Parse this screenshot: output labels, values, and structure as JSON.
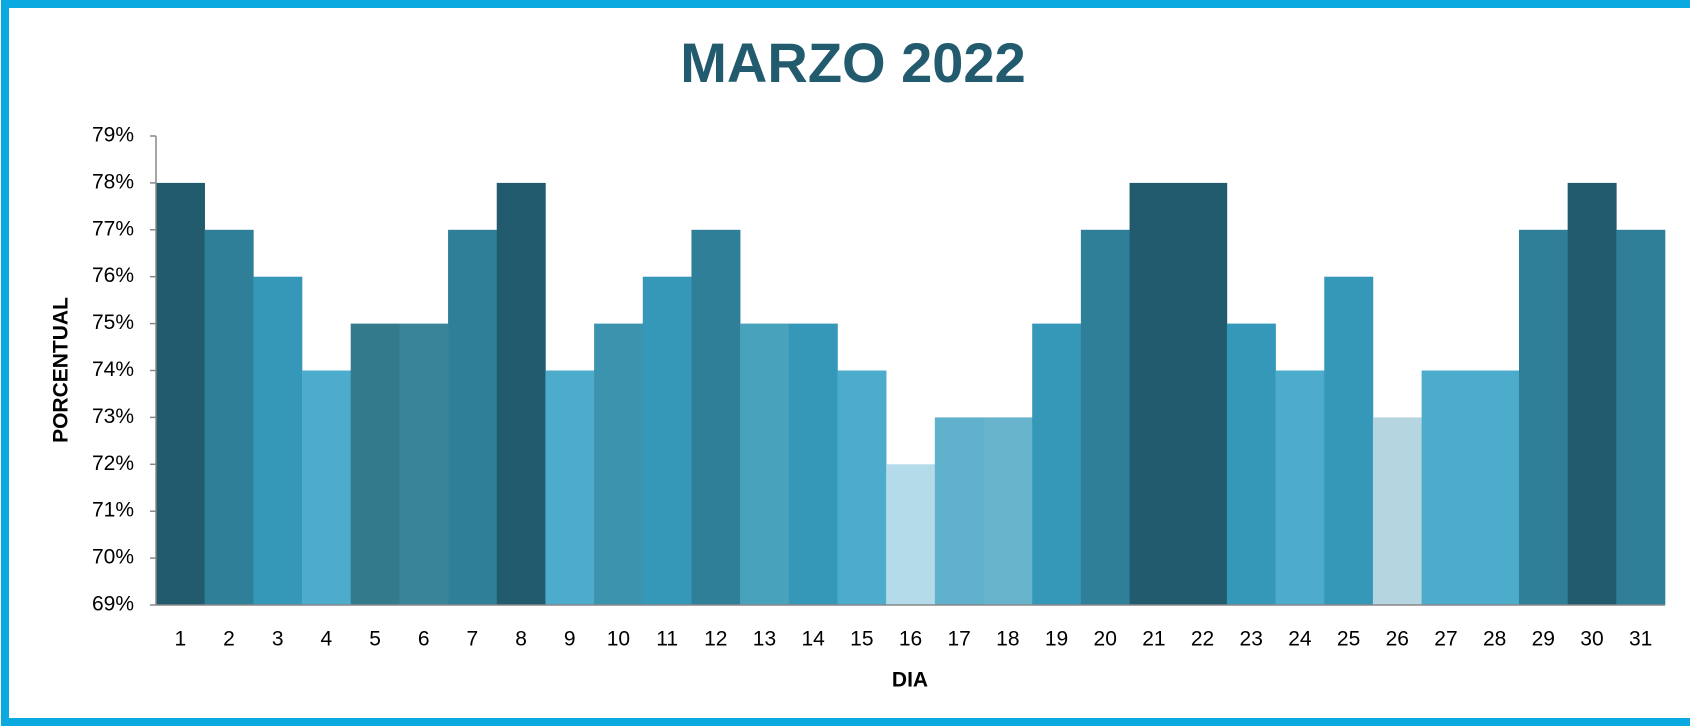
{
  "chart_data": {
    "type": "bar",
    "title": "MARZO 2022",
    "x_label": "DIA",
    "y_label": "PORCENTUAL",
    "categories": [
      "1",
      "2",
      "3",
      "4",
      "5",
      "6",
      "7",
      "8",
      "9",
      "10",
      "11",
      "12",
      "13",
      "14",
      "15",
      "16",
      "17",
      "18",
      "19",
      "20",
      "21",
      "22",
      "23",
      "24",
      "25",
      "26",
      "27",
      "28",
      "29",
      "30",
      "31"
    ],
    "values": [
      78,
      77,
      76,
      74,
      75,
      75,
      77,
      78,
      74,
      75,
      76,
      77,
      75,
      75,
      74,
      72,
      73,
      73,
      75,
      77,
      78,
      78,
      75,
      74,
      76,
      73,
      74,
      74,
      77,
      78,
      77
    ],
    "colors": [
      "#225b6e",
      "#2e7f97",
      "#3698b8",
      "#4dabcc",
      "#327a8c",
      "#3a8499",
      "#2e7f97",
      "#225b6e",
      "#4dabcc",
      "#3c93ad",
      "#3698b8",
      "#2e7f97",
      "#48a2bb",
      "#3698b8",
      "#4dabcc",
      "#b3dbea",
      "#5fb1cc",
      "#68b4cc",
      "#3698b8",
      "#2e7f97",
      "#225b6e",
      "#225b6e",
      "#3698b8",
      "#4dabcc",
      "#3698b8",
      "#b5d5e0",
      "#4dabcc",
      "#4dabcc",
      "#2e7f97",
      "#225b6e",
      "#2e7f97"
    ],
    "ylim": [
      69,
      79
    ],
    "yticks": [
      {
        "value": 69,
        "label": "69%"
      },
      {
        "value": 70,
        "label": "70%"
      },
      {
        "value": 71,
        "label": "71%"
      },
      {
        "value": 72,
        "label": "72%"
      },
      {
        "value": 73,
        "label": "73%"
      },
      {
        "value": 74,
        "label": "74%"
      },
      {
        "value": 75,
        "label": "75%"
      },
      {
        "value": 76,
        "label": "76%"
      },
      {
        "value": 77,
        "label": "77%"
      },
      {
        "value": 78,
        "label": "78%"
      },
      {
        "value": 79,
        "label": "79%"
      }
    ],
    "grid": false
  }
}
